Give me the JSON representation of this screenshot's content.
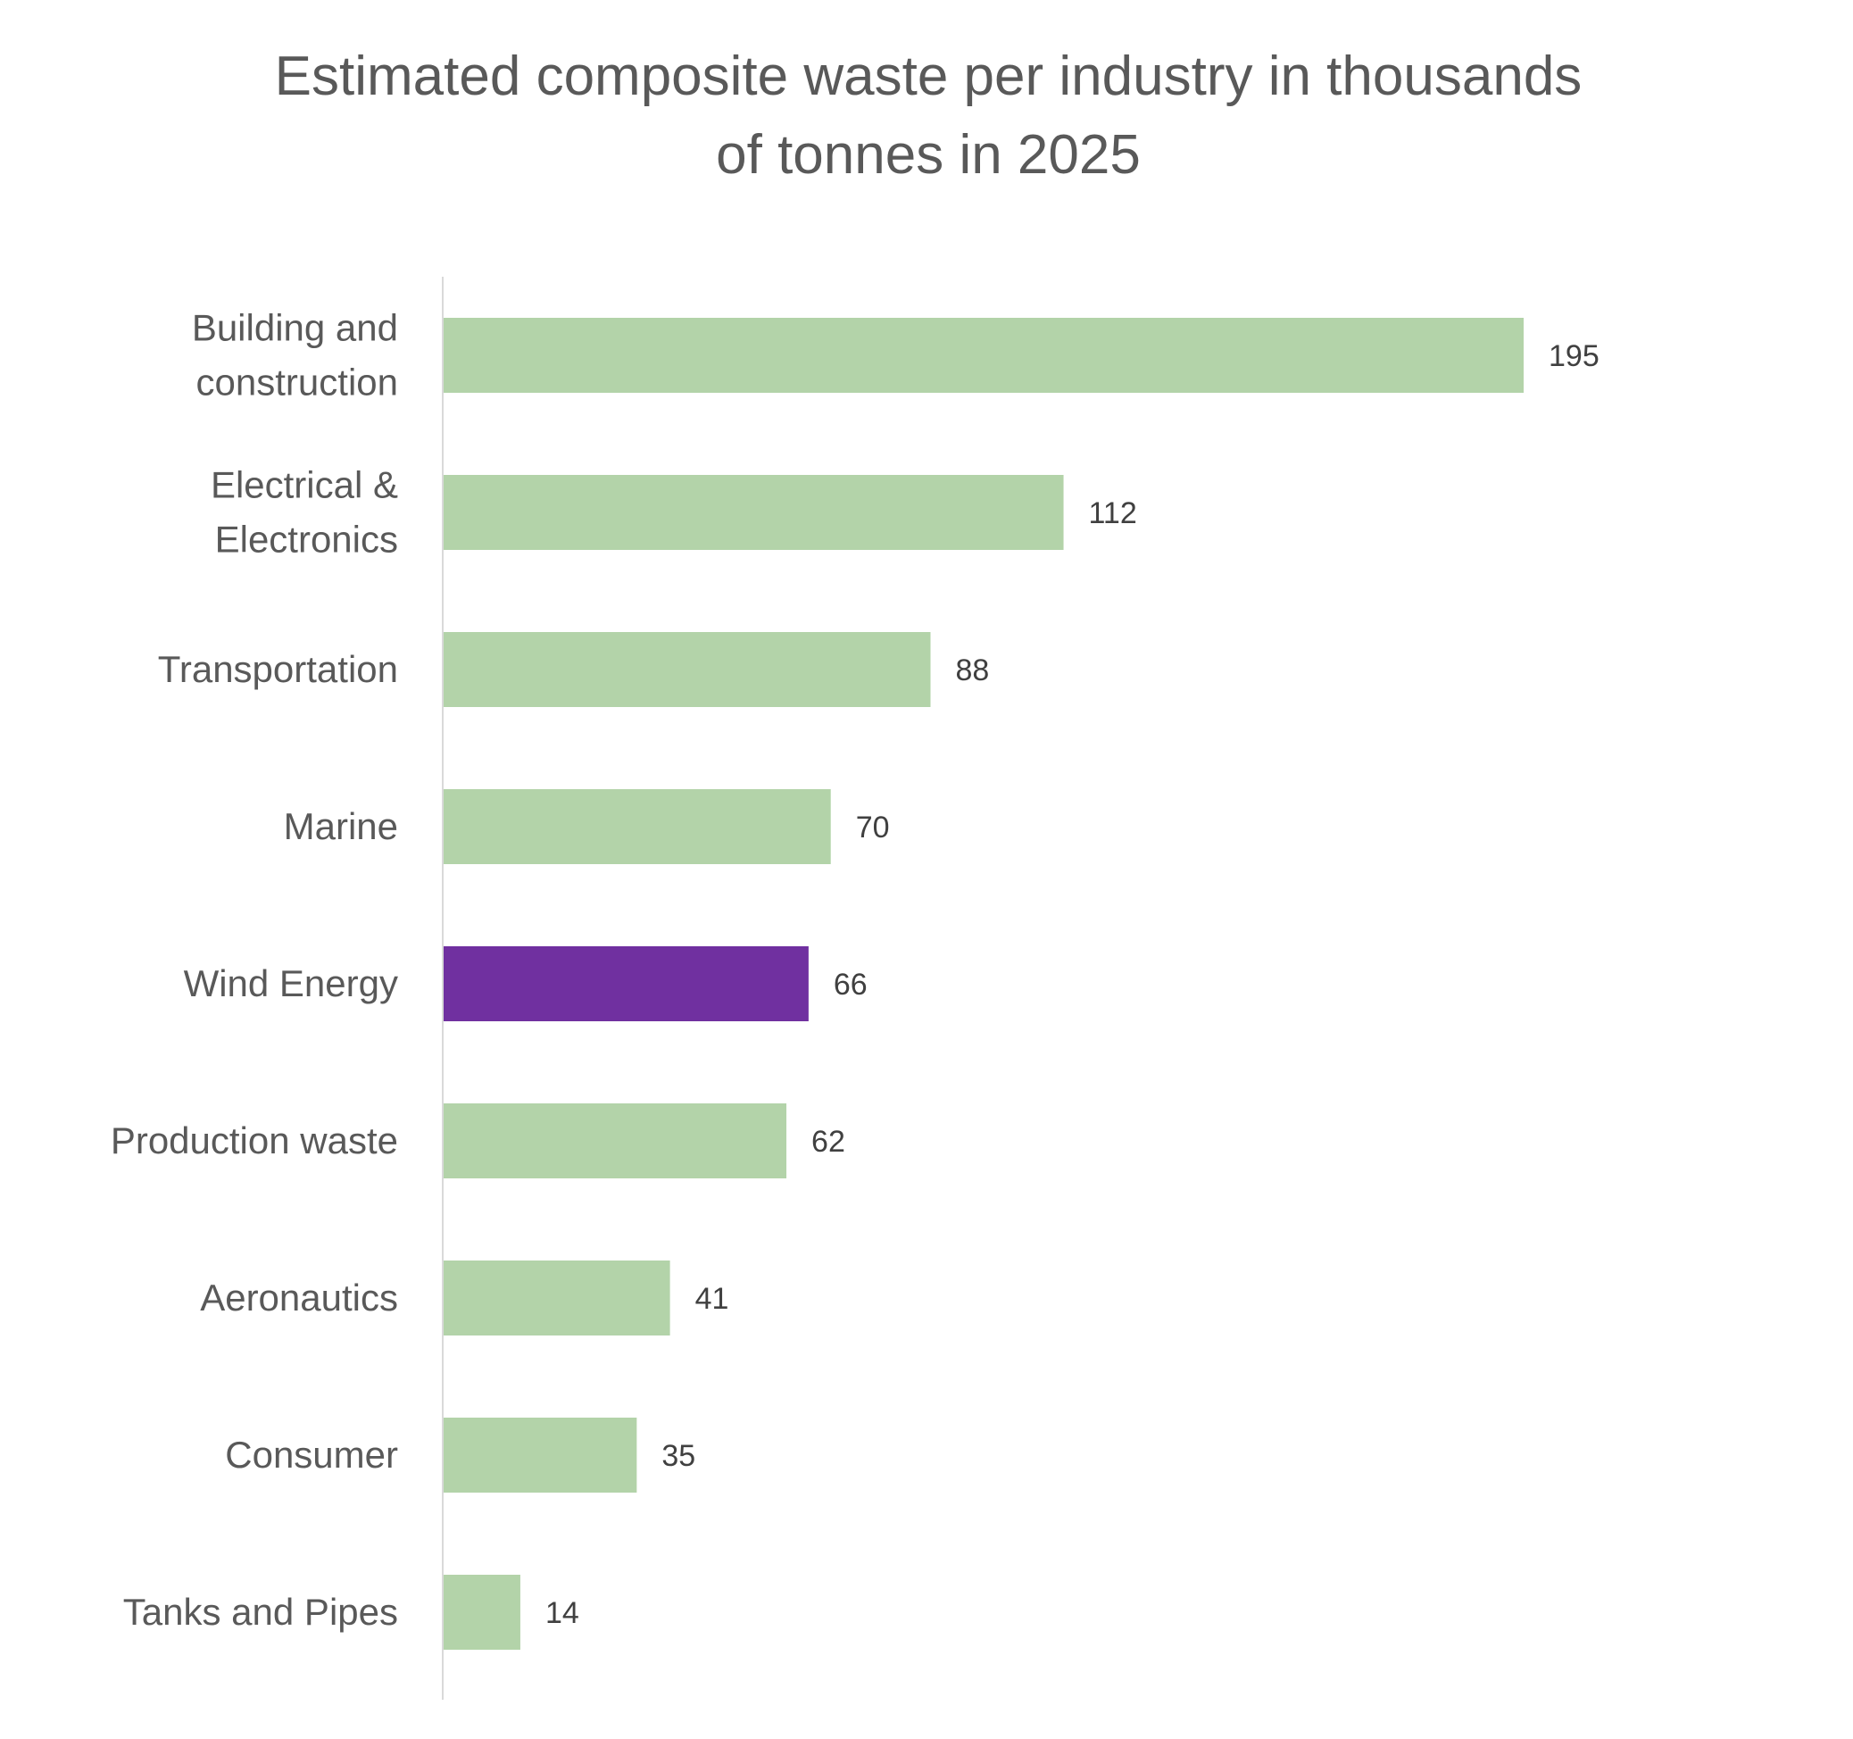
{
  "chart_data": {
    "type": "bar",
    "orientation": "horizontal",
    "title_lines": [
      "Estimated composite waste per industry in thousands",
      "of tonnes in 2025"
    ],
    "categories": [
      [
        "Building and",
        "construction"
      ],
      [
        "Electrical &",
        "Electronics"
      ],
      [
        "Transportation"
      ],
      [
        "Marine"
      ],
      [
        "Wind Energy"
      ],
      [
        "Production waste"
      ],
      [
        "Aeronautics"
      ],
      [
        "Consumer"
      ],
      [
        "Tanks and Pipes"
      ]
    ],
    "values": [
      195,
      112,
      88,
      70,
      66,
      62,
      41,
      35,
      14
    ],
    "data_labels": [
      "195",
      "112",
      "88",
      "70",
      "66",
      "62",
      "41",
      "35",
      "14"
    ],
    "highlight_category_index": 4,
    "colors": {
      "bar": "#b3d3a9",
      "highlight": "#7030a0",
      "axis": "#d9d9d9",
      "title": "#595959",
      "category_text": "#595959",
      "value_text": "#404040"
    },
    "xlim": [
      0,
      195
    ],
    "grid": false,
    "legend": "none"
  }
}
